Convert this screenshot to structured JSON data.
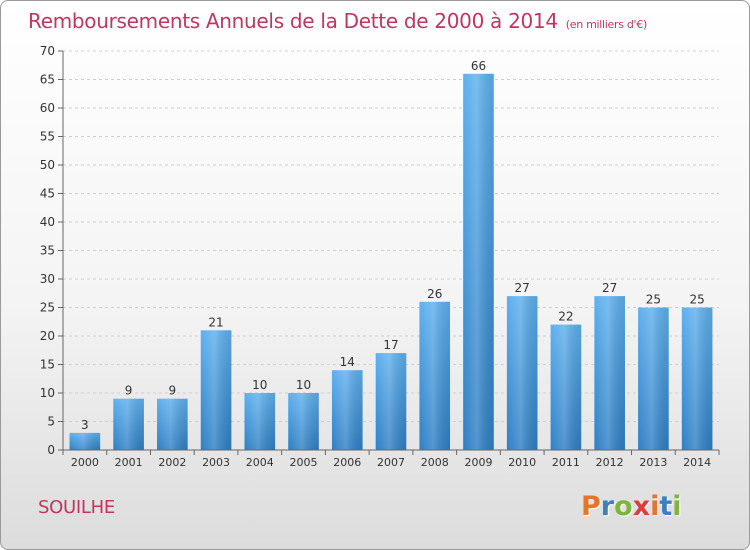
{
  "header": {
    "title": "Remboursements Annuels de la Dette de 2000 à 2014",
    "unit": "(en milliers d'€)"
  },
  "commune": "SOUILHE",
  "logo": {
    "text": "Proxiti",
    "colors": [
      "#e8732a",
      "#3d7fc1",
      "#7fb53b",
      "#e03b3b",
      "#e8732a",
      "#3d7fc1",
      "#7fb53b"
    ]
  },
  "chart_data": {
    "type": "bar",
    "title": "Remboursements Annuels de la Dette de 2000 à 2014",
    "ylabel": "",
    "xlabel": "",
    "categories": [
      "2000",
      "2001",
      "2002",
      "2003",
      "2004",
      "2005",
      "2006",
      "2007",
      "2008",
      "2009",
      "2010",
      "2011",
      "2012",
      "2013",
      "2014"
    ],
    "values": [
      3,
      9,
      9,
      21,
      10,
      10,
      14,
      17,
      26,
      66,
      27,
      22,
      27,
      25,
      25
    ],
    "ylim": [
      0,
      70
    ],
    "yticks": [
      0,
      5,
      10,
      15,
      20,
      25,
      30,
      35,
      40,
      45,
      50,
      55,
      60,
      65,
      70
    ],
    "grid": true,
    "bar_color": "#4a9de0"
  }
}
